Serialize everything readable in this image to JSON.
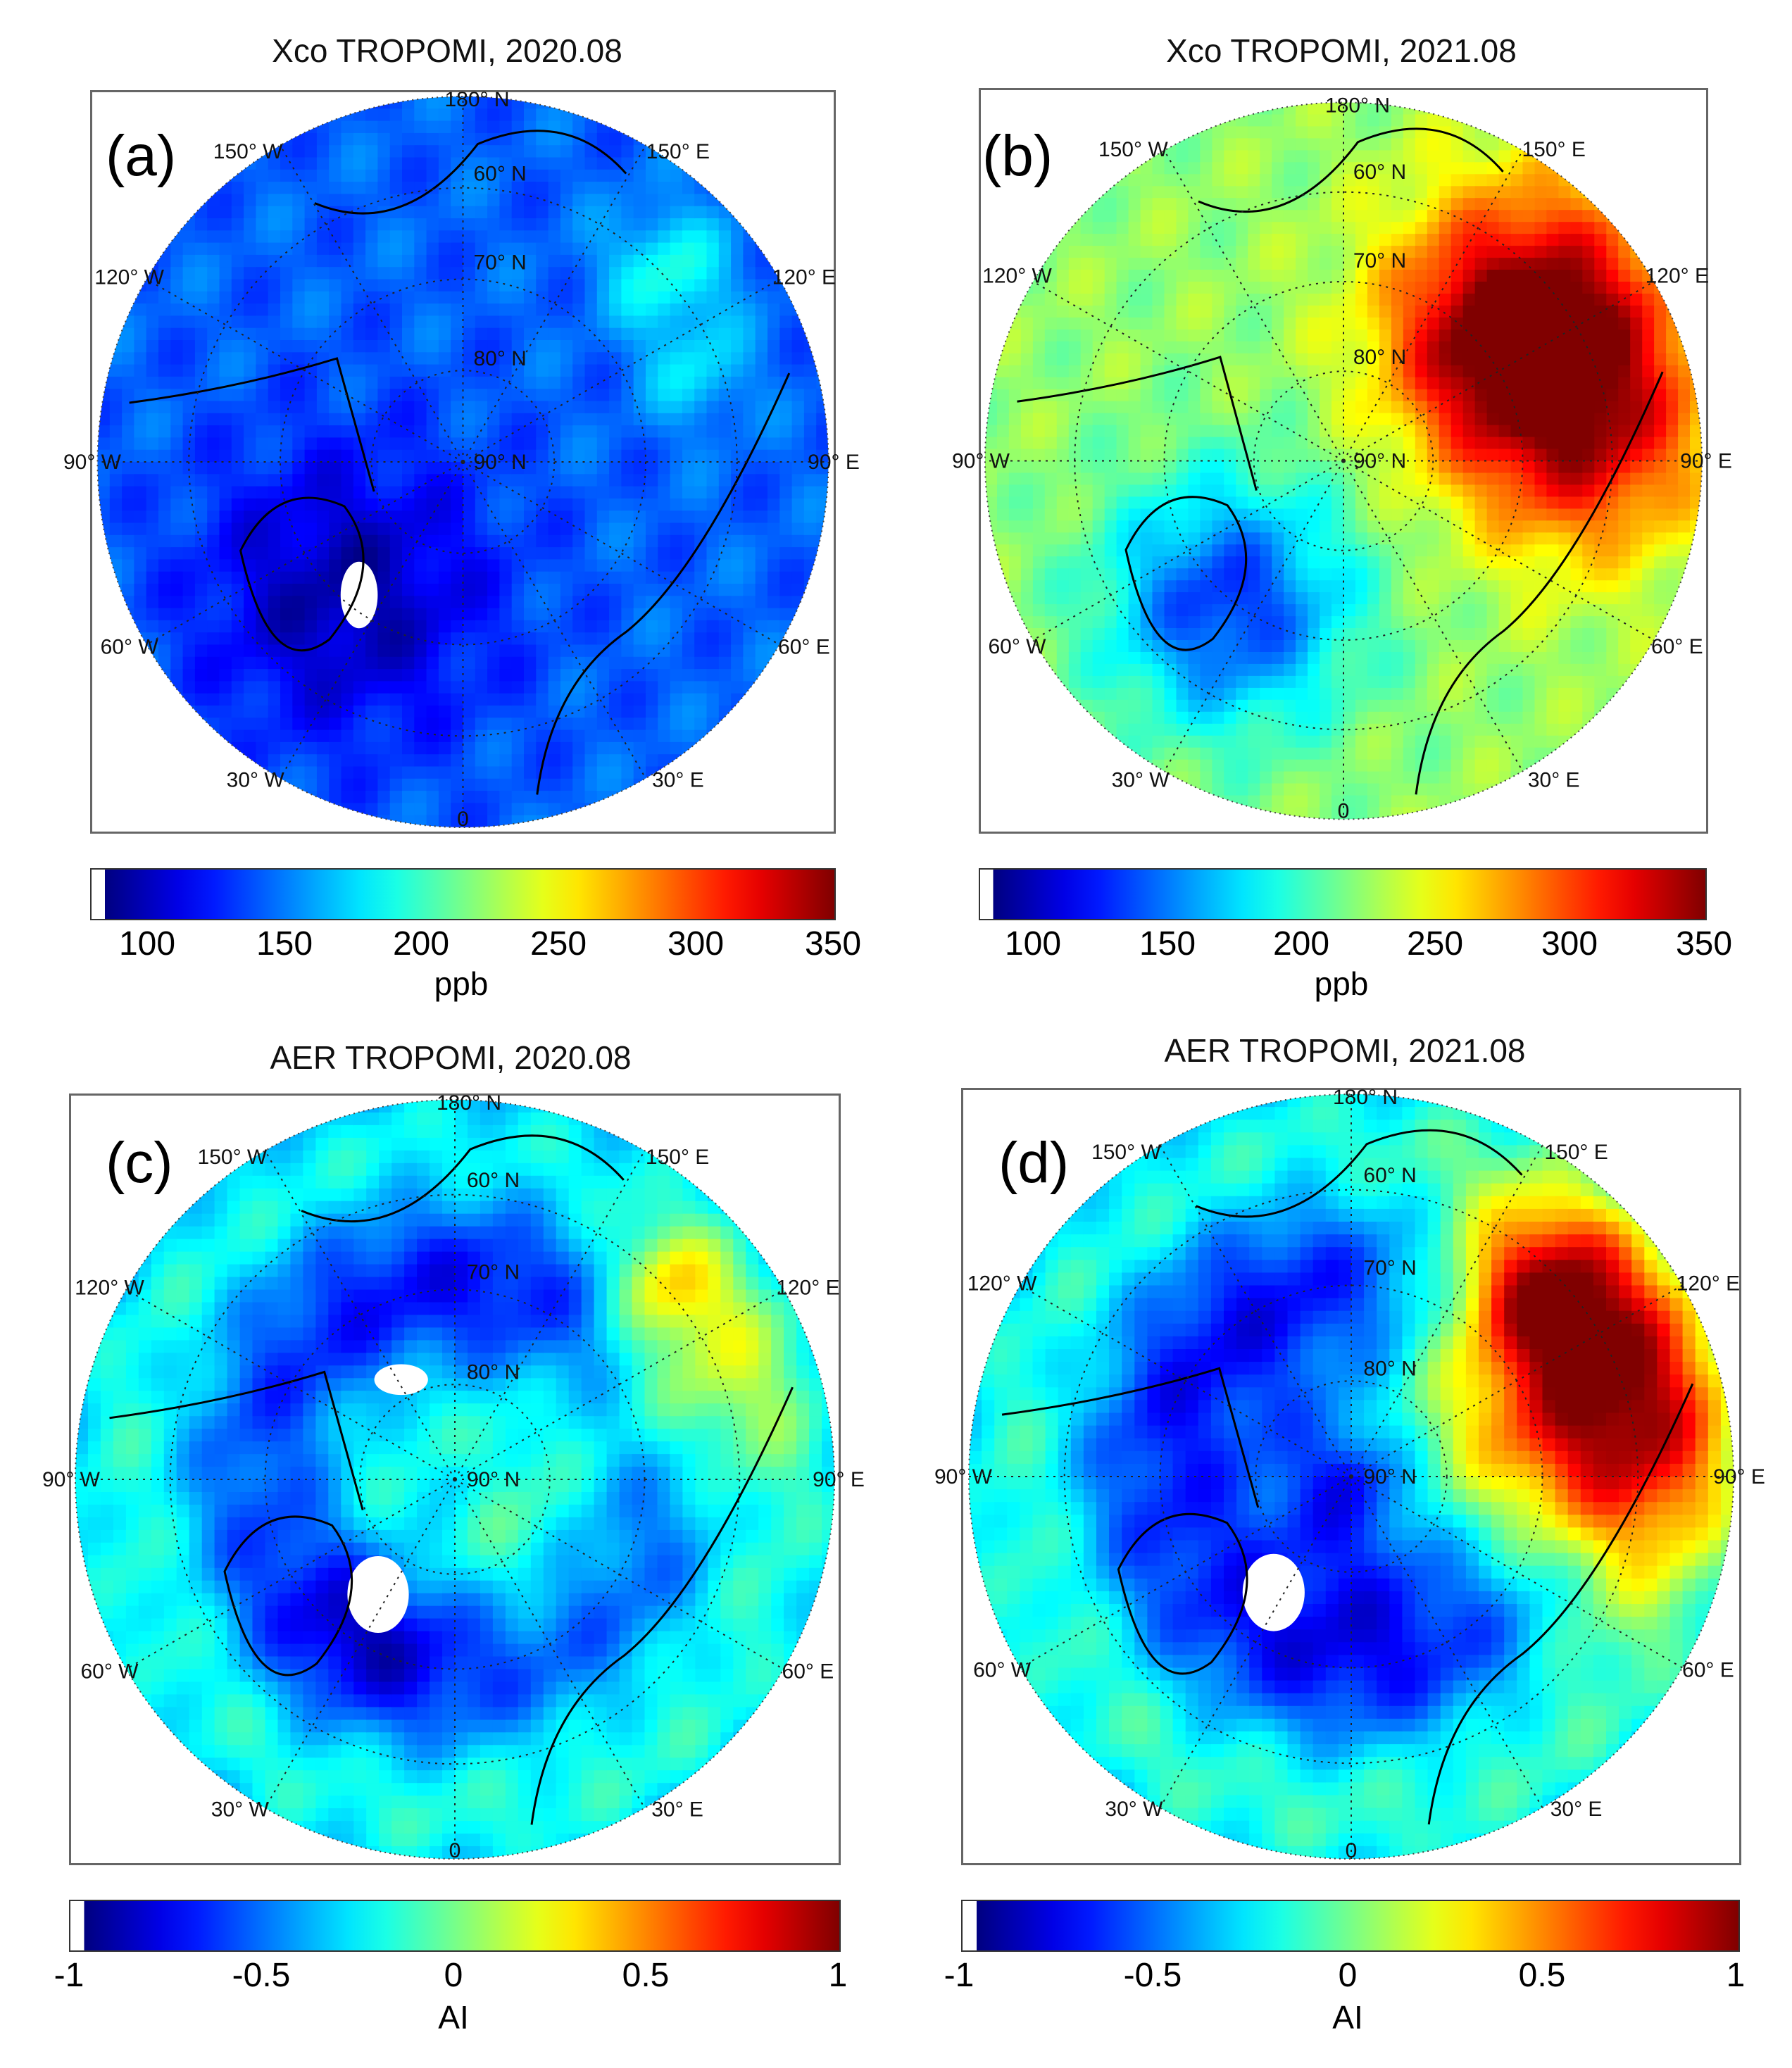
{
  "panels": [
    {
      "id": "a",
      "title": "Xco TROPOMI, 2020.08",
      "letter": "(a)",
      "colorbar": {
        "ticks": [
          "100",
          "150",
          "200",
          "250",
          "300",
          "350"
        ],
        "unit": "ppb",
        "min": 80,
        "max": 350
      },
      "field": {
        "base": 0.22,
        "hotspots": [
          [
            0.78,
            0.24,
            0.06,
            0.18
          ],
          [
            0.82,
            0.38,
            0.05,
            0.12
          ]
        ],
        "land_dark": [
          [
            0.34,
            0.68,
            0.14,
            -0.18
          ]
        ]
      }
    },
    {
      "id": "b",
      "title": "Xco TROPOMI, 2021.08",
      "letter": "(b)",
      "colorbar": {
        "ticks": [
          "100",
          "150",
          "200",
          "250",
          "300",
          "350"
        ],
        "unit": "ppb",
        "min": 80,
        "max": 350
      },
      "field": {
        "base": 0.52,
        "hotspots": [
          [
            0.78,
            0.3,
            0.14,
            0.42
          ],
          [
            0.84,
            0.48,
            0.12,
            0.28
          ],
          [
            0.7,
            0.34,
            0.1,
            0.18
          ]
        ],
        "land_dark": [
          [
            0.34,
            0.7,
            0.12,
            -0.35
          ]
        ]
      }
    },
    {
      "id": "c",
      "title": "AER TROPOMI, 2020.08",
      "letter": "(c)",
      "colorbar": {
        "ticks": [
          "-1",
          "-0.5",
          "0",
          "0.5",
          "1"
        ],
        "unit": "AI",
        "min": -1,
        "max": 1
      },
      "field": {
        "base": 0.32,
        "hotspots": [
          [
            0.8,
            0.36,
            0.1,
            0.25
          ],
          [
            0.78,
            0.24,
            0.05,
            0.2
          ],
          [
            0.5,
            0.5,
            0.14,
            0.18
          ]
        ],
        "land_dark": [
          [
            0.5,
            0.38,
            0.18,
            -0.18
          ],
          [
            0.4,
            0.68,
            0.1,
            -0.2
          ]
        ]
      }
    },
    {
      "id": "d",
      "title": "AER TROPOMI, 2021.08",
      "letter": "(d)",
      "colorbar": {
        "ticks": [
          "-1",
          "-0.5",
          "0",
          "0.5",
          "1"
        ],
        "unit": "AI",
        "min": -1,
        "max": 1
      },
      "field": {
        "base": 0.34,
        "hotspots": [
          [
            0.78,
            0.34,
            0.14,
            0.48
          ],
          [
            0.82,
            0.48,
            0.12,
            0.38
          ],
          [
            0.74,
            0.26,
            0.07,
            0.3
          ]
        ],
        "land_dark": [
          [
            0.45,
            0.4,
            0.18,
            -0.18
          ],
          [
            0.5,
            0.62,
            0.12,
            -0.2
          ]
        ]
      }
    }
  ],
  "graticule_labels": {
    "top": "180° N",
    "bottom": "0",
    "lon": [
      "150° W",
      "150° E",
      "120° W",
      "120° E",
      "90° W",
      "90° E",
      "60° W",
      "60° E",
      "30° W",
      "30° E"
    ],
    "lat": [
      "60° N",
      "70° N",
      "80° N",
      "90° N"
    ]
  },
  "colormap": "jet"
}
